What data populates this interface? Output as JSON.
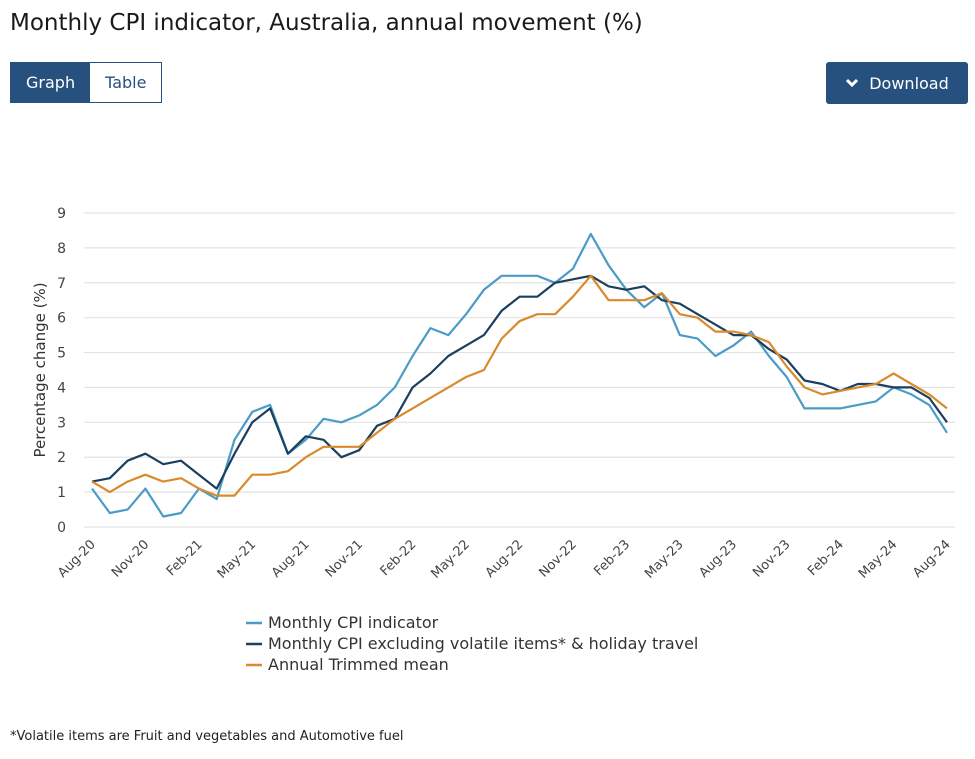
{
  "page": {
    "title": "Monthly CPI indicator, Australia, annual movement (%)",
    "footnote": "*Volatile items are Fruit and vegetables and Automotive fuel"
  },
  "view_toggle": {
    "graph": "Graph",
    "table": "Table",
    "selected": "Graph"
  },
  "download": {
    "label": "Download",
    "icon": "chevron-down-icon"
  },
  "chart_data": {
    "type": "line",
    "title": "",
    "xlabel": "",
    "ylabel": "Percentage change (%)",
    "ylim": [
      0,
      9
    ],
    "yticks": [
      0,
      1,
      2,
      3,
      4,
      5,
      6,
      7,
      8,
      9
    ],
    "grid": true,
    "legend_position": "bottom",
    "x": [
      "Aug-20",
      "Sep-20",
      "Oct-20",
      "Nov-20",
      "Dec-20",
      "Jan-21",
      "Feb-21",
      "Mar-21",
      "Apr-21",
      "May-21",
      "Jun-21",
      "Jul-21",
      "Aug-21",
      "Sep-21",
      "Oct-21",
      "Nov-21",
      "Dec-21",
      "Jan-22",
      "Feb-22",
      "Mar-22",
      "Apr-22",
      "May-22",
      "Jun-22",
      "Jul-22",
      "Aug-22",
      "Sep-22",
      "Oct-22",
      "Nov-22",
      "Dec-22",
      "Jan-23",
      "Feb-23",
      "Mar-23",
      "Apr-23",
      "May-23",
      "Jun-23",
      "Jul-23",
      "Aug-23",
      "Sep-23",
      "Oct-23",
      "Nov-23",
      "Dec-23",
      "Jan-24",
      "Feb-24",
      "Mar-24",
      "Apr-24",
      "May-24",
      "Jun-24",
      "Jul-24",
      "Aug-24"
    ],
    "xtick_labels": [
      "Aug-20",
      "Nov-20",
      "Feb-21",
      "May-21",
      "Aug-21",
      "Nov-21",
      "Feb-22",
      "May-22",
      "Aug-22",
      "Nov-22",
      "Feb-23",
      "May-23",
      "Aug-23",
      "Nov-23",
      "Feb-24",
      "May-24",
      "Aug-24"
    ],
    "series": [
      {
        "name": "Monthly CPI indicator",
        "color": "#4a9cc6",
        "values": [
          1.1,
          0.4,
          0.5,
          1.1,
          0.3,
          0.4,
          1.1,
          0.8,
          2.5,
          3.3,
          3.5,
          2.1,
          2.5,
          3.1,
          3.0,
          3.2,
          3.5,
          4.0,
          4.9,
          5.7,
          5.5,
          6.1,
          6.8,
          7.2,
          7.2,
          7.2,
          7.0,
          7.4,
          8.4,
          7.5,
          6.8,
          6.3,
          6.7,
          5.5,
          5.4,
          4.9,
          5.2,
          5.6,
          4.9,
          4.3,
          3.4,
          3.4,
          3.4,
          3.5,
          3.6,
          4.0,
          3.8,
          3.5,
          2.7
        ]
      },
      {
        "name": "Monthly CPI excluding volatile items* & holiday travel",
        "color": "#1b3f5e",
        "values": [
          1.3,
          1.4,
          1.9,
          2.1,
          1.8,
          1.9,
          1.5,
          1.1,
          2.1,
          3.0,
          3.4,
          2.1,
          2.6,
          2.5,
          2.0,
          2.2,
          2.9,
          3.1,
          4.0,
          4.4,
          4.9,
          5.2,
          5.5,
          6.2,
          6.6,
          6.6,
          7.0,
          7.1,
          7.2,
          6.9,
          6.8,
          6.9,
          6.5,
          6.4,
          6.1,
          5.8,
          5.5,
          5.5,
          5.1,
          4.8,
          4.2,
          4.1,
          3.9,
          4.1,
          4.1,
          4.0,
          4.0,
          3.7,
          3.0
        ]
      },
      {
        "name": "Annual Trimmed mean",
        "color": "#d98a2b",
        "values": [
          1.3,
          1.0,
          1.3,
          1.5,
          1.3,
          1.4,
          1.1,
          0.9,
          0.9,
          1.5,
          1.5,
          1.6,
          2.0,
          2.3,
          2.3,
          2.3,
          2.7,
          3.1,
          3.4,
          3.7,
          4.0,
          4.3,
          4.5,
          5.4,
          5.9,
          6.1,
          6.1,
          6.6,
          7.2,
          6.5,
          6.5,
          6.5,
          6.7,
          6.1,
          6.0,
          5.6,
          5.6,
          5.5,
          5.3,
          4.6,
          4.0,
          3.8,
          3.9,
          4.0,
          4.1,
          4.4,
          4.1,
          3.8,
          3.4
        ]
      }
    ]
  }
}
